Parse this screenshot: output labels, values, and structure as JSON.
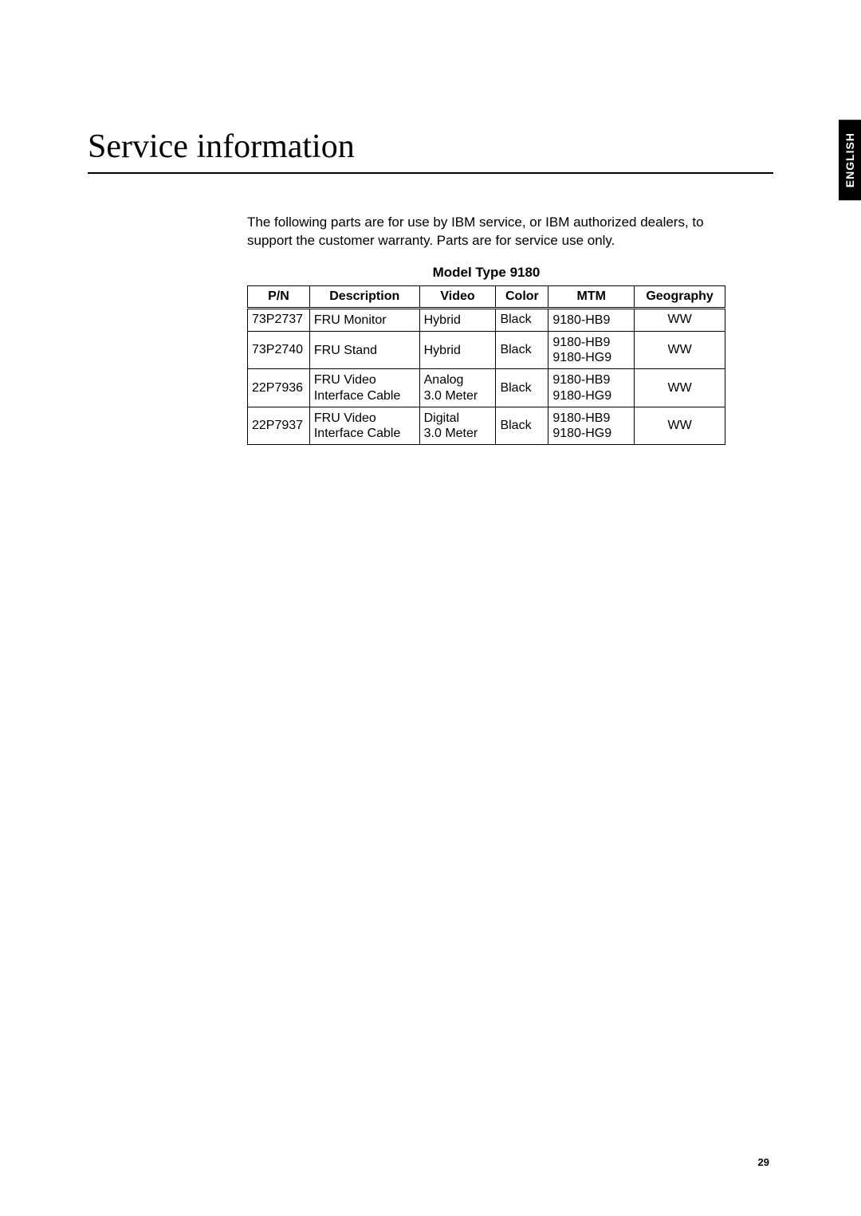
{
  "side_tab": "ENGLISH",
  "title": "Service information",
  "intro": "The following parts are for use by IBM service, or IBM authorized dealers, to support the customer warranty. Parts are for service use only.",
  "table_title": "Model Type 9180",
  "columns": [
    "P/N",
    "Description",
    "Video",
    "Color",
    "MTM",
    "Geography"
  ],
  "column_align": [
    "left",
    "left",
    "left",
    "left",
    "left",
    "center"
  ],
  "header_align": [
    "center",
    "center",
    "center",
    "center",
    "center",
    "center"
  ],
  "column_widths": [
    "13%",
    "23%",
    "16%",
    "11%",
    "18%",
    "19%"
  ],
  "rows": [
    {
      "pn": "73P2737",
      "desc": "FRU Monitor",
      "video": "Hybrid",
      "color": "Black",
      "mtm": "9180-HB9",
      "geo": "WW"
    },
    {
      "pn": "73P2740",
      "desc": "FRU Stand",
      "video": "Hybrid",
      "color": "Black",
      "mtm": "9180-HB9\n9180-HG9",
      "geo": "WW"
    },
    {
      "pn": "22P7936",
      "desc": "FRU Video\nInterface Cable",
      "video": "Analog\n3.0 Meter",
      "color": "Black",
      "mtm": "9180-HB9\n9180-HG9",
      "geo": "WW"
    },
    {
      "pn": "22P7937",
      "desc": "FRU Video\nInterface Cable",
      "video": "Digital\n3.0 Meter",
      "color": "Black",
      "mtm": "9180-HB9\n9180-HG9",
      "geo": "WW"
    }
  ],
  "page_number": "29",
  "colors": {
    "background": "#ffffff",
    "text": "#000000",
    "tab_bg": "#000000",
    "tab_text": "#ffffff",
    "border": "#000000"
  },
  "font_sizes": {
    "title": 42,
    "body": 17,
    "table": 16,
    "page_num": 13,
    "tab": 14
  }
}
